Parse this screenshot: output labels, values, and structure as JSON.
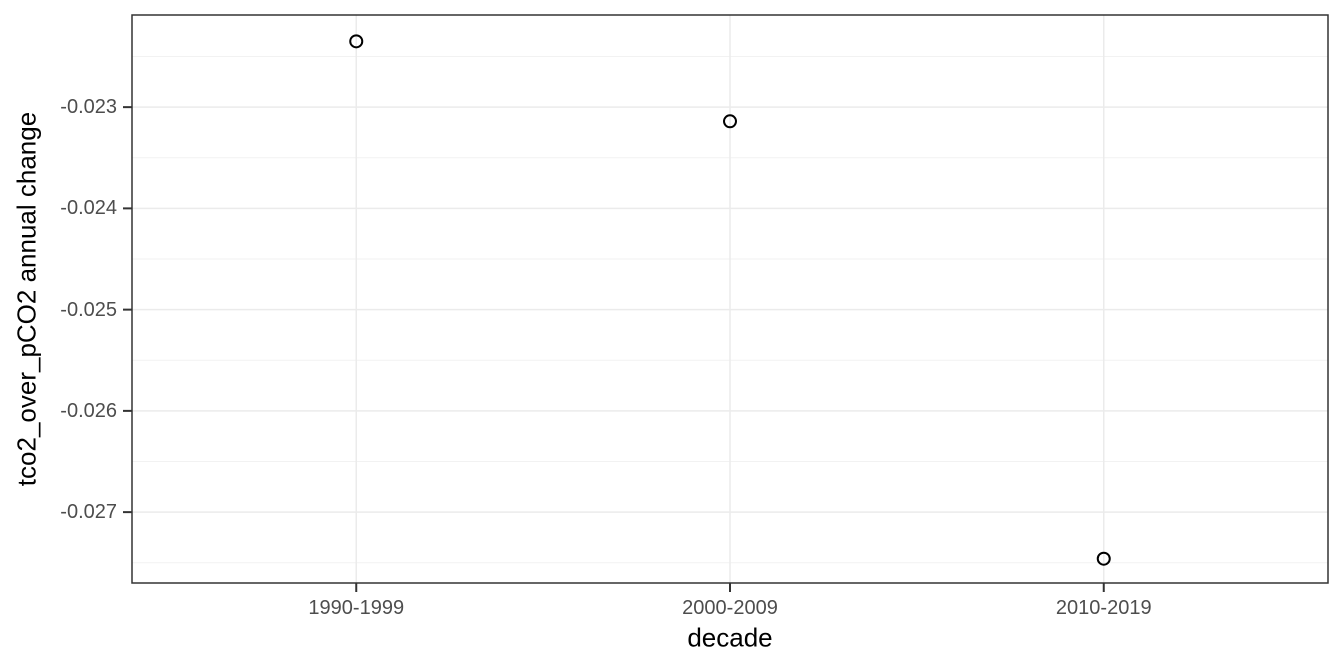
{
  "chart_data": {
    "type": "scatter",
    "title": "",
    "xlabel": "decade",
    "ylabel": "tco2_over_pCO2 annual change",
    "categories": [
      "1990-1999",
      "2000-2009",
      "2010-2019"
    ],
    "series": [
      {
        "name": "tco2_over_pCO2 annual change",
        "values": [
          -0.02235,
          -0.02314,
          -0.02746
        ]
      }
    ],
    "y_ticks": {
      "values": [
        -0.023,
        -0.024,
        -0.025,
        -0.026,
        -0.027
      ],
      "labels": [
        "-0.023",
        "-0.024",
        "-0.025",
        "-0.026",
        "-0.027"
      ]
    },
    "y_minor_gridlines": [
      -0.0225,
      -0.0235,
      -0.0245,
      -0.0255,
      -0.0265,
      -0.0275
    ],
    "ylim": [
      -0.0277,
      -0.02209
    ],
    "grid": true,
    "legend": false,
    "marker": "open-circle",
    "colors": {
      "background": "#ffffff",
      "panel_background": "#ffffff",
      "grid_major": "#ebebeb",
      "grid_minor": "#f2f2f2",
      "panel_border": "#333333",
      "tick_mark": "#333333",
      "tick_label": "#4d4d4d",
      "axis_title": "#000000",
      "point_stroke": "#000000"
    }
  }
}
